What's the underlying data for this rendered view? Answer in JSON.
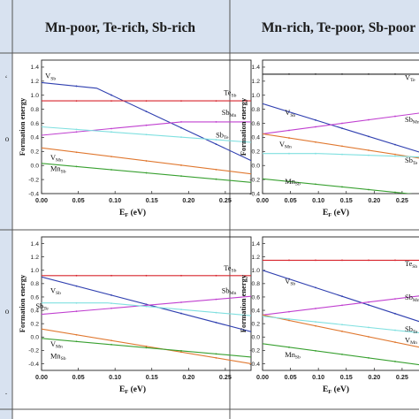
{
  "headers": [
    "Mn-poor, Te-rich, Sb-rich",
    "Mn-rich, Te-poor, Sb-poor"
  ],
  "x_axis": {
    "label_main": "E",
    "label_sub": "F",
    "label_tail": " (eV)"
  },
  "y_axis": {
    "label": "Formation energy"
  },
  "chart_data": [
    {
      "type": "line",
      "panel": "top-left",
      "xlim": [
        0,
        0.285
      ],
      "ylim": [
        -0.4,
        1.5
      ],
      "xticks": [
        "0.00",
        "0.05",
        "0.10",
        "0.15",
        "0.20",
        "0.25"
      ],
      "yticks": [
        "-0.4",
        "-0.2",
        "0.0",
        "0.2",
        "0.4",
        "0.6",
        "0.8",
        "1.0",
        "1.2",
        "1.4"
      ],
      "series": [
        {
          "label": "V",
          "sub": "Sb",
          "color": "#3040b0",
          "x": [
            0,
            0.075,
            0.285
          ],
          "y": [
            1.18,
            1.1,
            0.07
          ],
          "lx": 0.005,
          "ly": 1.24
        },
        {
          "label": "Te",
          "sub": "Sb",
          "color": "#d8262e",
          "x": [
            0,
            0.285
          ],
          "y": [
            0.92,
            0.92
          ],
          "lx": 0.248,
          "ly": 1.0
        },
        {
          "label": "Sb",
          "sub": "Mn",
          "color": "#c040d0",
          "x": [
            0,
            0.19,
            0.285
          ],
          "y": [
            0.43,
            0.62,
            0.62
          ],
          "lx": 0.245,
          "ly": 0.72
        },
        {
          "label": "Sb",
          "sub": "Te",
          "color": "#80e0e0",
          "x": [
            0,
            0.285
          ],
          "y": [
            0.55,
            0.33
          ],
          "lx": 0.237,
          "ly": 0.4
        },
        {
          "label": "V",
          "sub": "Mn",
          "color": "#e07830",
          "x": [
            0,
            0.285
          ],
          "y": [
            0.25,
            -0.12
          ],
          "lx": 0.012,
          "ly": 0.08
        },
        {
          "label": "Mn",
          "sub": "Sb",
          "color": "#38a030",
          "x": [
            0,
            0.285
          ],
          "y": [
            0.03,
            -0.24
          ],
          "lx": 0.012,
          "ly": -0.08
        }
      ]
    },
    {
      "type": "line",
      "panel": "top-right",
      "xlim": [
        0,
        0.285
      ],
      "ylim": [
        -0.4,
        1.5
      ],
      "xticks": [
        "0.00",
        "0.05",
        "0.10",
        "0.15",
        "0.20",
        "0.25"
      ],
      "yticks": [
        "-0.4",
        "-0.2",
        "0.0",
        "0.2",
        "0.4",
        "0.6",
        "0.8",
        "1.0",
        "1.2",
        "1.4"
      ],
      "series": [
        {
          "label": "V",
          "sub": "Te",
          "color": "#222222",
          "x": [
            0,
            0.285
          ],
          "y": [
            1.3,
            1.3
          ],
          "lx": 0.255,
          "ly": 1.22
        },
        {
          "label": "V",
          "sub": "Sb",
          "color": "#3040b0",
          "x": [
            0,
            0.285
          ],
          "y": [
            0.88,
            0.18
          ],
          "lx": 0.04,
          "ly": 0.72
        },
        {
          "label": "Sb",
          "sub": "Mn",
          "color": "#c040d0",
          "x": [
            0,
            0.285
          ],
          "y": [
            0.45,
            0.75
          ],
          "lx": 0.255,
          "ly": 0.62
        },
        {
          "label": "V",
          "sub": "Mn",
          "color": "#e07830",
          "x": [
            0,
            0.285
          ],
          "y": [
            0.45,
            0.1
          ],
          "lx": 0.03,
          "ly": 0.27
        },
        {
          "label": "Sb",
          "sub": "Te",
          "color": "#80e0e0",
          "x": [
            0,
            0.1,
            0.285
          ],
          "y": [
            0.17,
            0.17,
            0.12
          ],
          "lx": 0.255,
          "ly": 0.04
        },
        {
          "label": "Mn",
          "sub": "Sb",
          "color": "#38a030",
          "x": [
            0,
            0.285
          ],
          "y": [
            -0.19,
            -0.42
          ],
          "lx": 0.04,
          "ly": -0.26
        }
      ]
    },
    {
      "type": "line",
      "panel": "bottom-left",
      "xlim": [
        0,
        0.285
      ],
      "ylim": [
        -0.5,
        1.5
      ],
      "xticks": [
        "0.00",
        "0.05",
        "0.10",
        "0.15",
        "0.20",
        "0.25"
      ],
      "yticks": [
        "-0.4",
        "-0.2",
        "0.0",
        "0.2",
        "0.4",
        "0.6",
        "0.8",
        "1.0",
        "1.2",
        "1.4"
      ],
      "series": [
        {
          "label": "Te",
          "sub": "Sb",
          "color": "#d8262e",
          "x": [
            0,
            0.285
          ],
          "y": [
            0.92,
            0.92
          ],
          "lx": 0.248,
          "ly": 1.0
        },
        {
          "label": "V",
          "sub": "Sb",
          "color": "#3040b0",
          "x": [
            0,
            0.285
          ],
          "y": [
            0.9,
            0.08
          ],
          "lx": 0.012,
          "ly": 0.66
        },
        {
          "label": "Sb",
          "sub": "Mn",
          "color": "#c040d0",
          "x": [
            0,
            0.285
          ],
          "y": [
            0.34,
            0.61
          ],
          "lx": 0.245,
          "ly": 0.66
        },
        {
          "label": "Sb",
          "sub": "Te",
          "color": "#80e0e0",
          "x": [
            0,
            0.09,
            0.285
          ],
          "y": [
            0.51,
            0.51,
            0.32
          ],
          "lx": -0.008,
          "ly": 0.43
        },
        {
          "label": "V",
          "sub": "Mn",
          "color": "#e07830",
          "x": [
            0,
            0.285
          ],
          "y": [
            0.12,
            -0.4
          ],
          "lx": 0.012,
          "ly": -0.14
        },
        {
          "label": "Mn",
          "sub": "Sb",
          "color": "#38a030",
          "x": [
            0,
            0.285
          ],
          "y": [
            -0.02,
            -0.3
          ],
          "lx": 0.012,
          "ly": -0.32
        }
      ]
    },
    {
      "type": "line",
      "panel": "bottom-right",
      "xlim": [
        0,
        0.285
      ],
      "ylim": [
        -0.5,
        1.5
      ],
      "xticks": [
        "0.00",
        "0.05",
        "0.10",
        "0.15",
        "0.20",
        "0.25"
      ],
      "yticks": [
        "-0.4",
        "-0.2",
        "0.0",
        "0.2",
        "0.4",
        "0.6",
        "0.8",
        "1.0",
        "1.2",
        "1.4"
      ],
      "series": [
        {
          "label": "Te",
          "sub": "Sb",
          "color": "#d8262e",
          "x": [
            0,
            0.285
          ],
          "y": [
            1.15,
            1.15
          ],
          "lx": 0.255,
          "ly": 1.06
        },
        {
          "label": "V",
          "sub": "Sb",
          "color": "#3040b0",
          "x": [
            0,
            0.285
          ],
          "y": [
            1.0,
            0.22
          ],
          "lx": 0.04,
          "ly": 0.8
        },
        {
          "label": "Sb",
          "sub": "Mn",
          "color": "#c040d0",
          "x": [
            0,
            0.285
          ],
          "y": [
            0.33,
            0.62
          ],
          "lx": 0.255,
          "ly": 0.56
        },
        {
          "label": "V",
          "sub": "Mn",
          "color": "#e07830",
          "x": [
            0,
            0.285
          ],
          "y": [
            0.33,
            -0.16
          ],
          "lx": 0.255,
          "ly": -0.08
        },
        {
          "label": "Sb",
          "sub": "Te",
          "color": "#80e0e0",
          "x": [
            0,
            0.285
          ],
          "y": [
            0.31,
            0.06
          ],
          "lx": 0.255,
          "ly": 0.08
        },
        {
          "label": "Mn",
          "sub": "Sb",
          "color": "#38a030",
          "x": [
            0,
            0.285
          ],
          "y": [
            -0.1,
            -0.42
          ],
          "lx": 0.04,
          "ly": -0.3
        }
      ]
    }
  ]
}
